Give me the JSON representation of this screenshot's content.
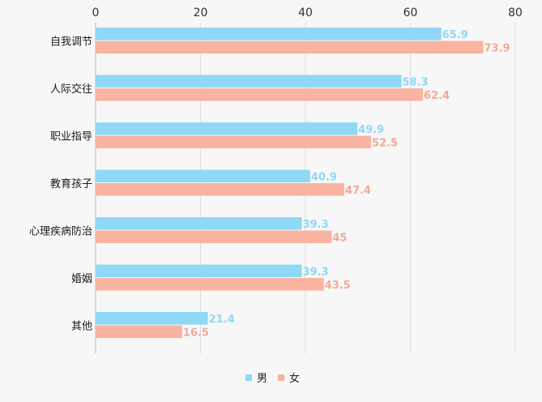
{
  "chart_data": {
    "type": "bar",
    "orientation": "horizontal",
    "categories": [
      "自我调节",
      "人际交往",
      "职业指导",
      "教育孩子",
      "心理疾病防治",
      "婚姻",
      "其他"
    ],
    "series": [
      {
        "name": "男",
        "values": [
          65.9,
          58.3,
          49.9,
          40.9,
          39.3,
          39.3,
          21.4
        ],
        "color": "#8fd8f6"
      },
      {
        "name": "女",
        "values": [
          73.9,
          62.4,
          52.5,
          47.4,
          45,
          43.5,
          16.5
        ],
        "color": "#f9b3a1"
      }
    ],
    "xlim": [
      0,
      80
    ],
    "xticks": [
      0,
      20,
      40,
      60,
      80
    ],
    "title": "",
    "xlabel": "",
    "ylabel": "",
    "grid": true,
    "legend_position": "bottom-center"
  },
  "colors": {
    "grid": "#dcdcdc",
    "axis": "#bbbbbb",
    "male_label": "#8fd8f6",
    "female_label": "#f3a995"
  }
}
